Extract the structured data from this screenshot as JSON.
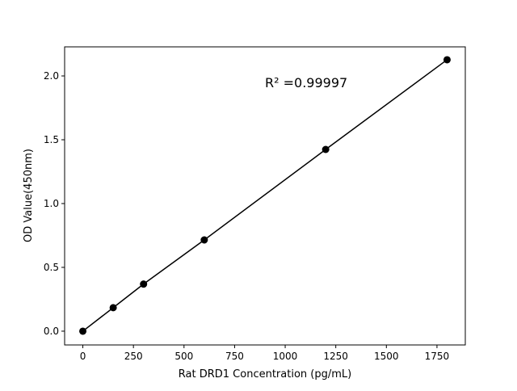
{
  "chart_data": {
    "type": "line",
    "title": "",
    "xlabel": "Rat DRD1 Concentration (pg/mL)",
    "ylabel": "OD Value(450nm)",
    "annotation": "R² =0.99997",
    "x": [
      0,
      150,
      300,
      600,
      1200,
      1800
    ],
    "y": [
      0.0,
      0.184,
      0.369,
      0.715,
      1.424,
      2.127
    ],
    "xlim": [
      -90,
      1890
    ],
    "ylim": [
      -0.108,
      2.228
    ],
    "xticks": [
      0,
      250,
      500,
      750,
      1000,
      1250,
      1500,
      1750
    ],
    "xtick_labels": [
      "0",
      "250",
      "500",
      "750",
      "1000",
      "1250",
      "1500",
      "1750"
    ],
    "yticks": [
      0.0,
      0.5,
      1.0,
      1.5,
      2.0
    ],
    "ytick_labels": [
      "0.0",
      "0.5",
      "1.0",
      "1.5",
      "2.0"
    ],
    "grid": false,
    "marker": "circle",
    "color": "#000000"
  }
}
